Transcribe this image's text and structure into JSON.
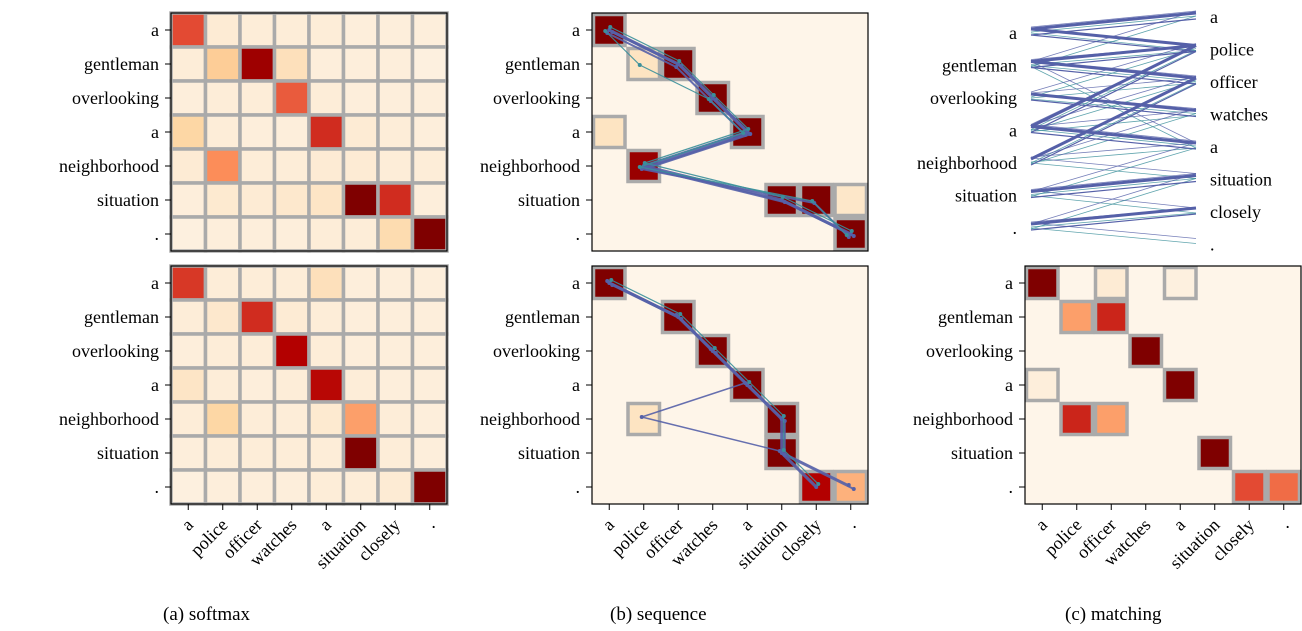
{
  "figure": {
    "caption_a": "(a) softmax",
    "caption_b": "(b) sequence",
    "caption_c": "(c) matching"
  },
  "chart_data": [
    {
      "type": "heatmap",
      "panel": "a-top",
      "title": "",
      "xlabel": "",
      "ylabel": "",
      "rows": [
        "a",
        "gentleman",
        "overlooking",
        "a",
        "neighborhood",
        "situation",
        "."
      ],
      "cols": [
        "a",
        "police",
        "officer",
        "watches",
        "a",
        "situation",
        "closely",
        "."
      ],
      "grid": true,
      "values": [
        [
          0.6,
          0.05,
          0.04,
          0.04,
          0.04,
          0.03,
          0.03,
          0.03
        ],
        [
          0.04,
          0.22,
          0.88,
          0.12,
          0.03,
          0.03,
          0.03,
          0.02
        ],
        [
          0.03,
          0.04,
          0.04,
          0.55,
          0.04,
          0.03,
          0.03,
          0.03
        ],
        [
          0.18,
          0.04,
          0.03,
          0.03,
          0.68,
          0.05,
          0.04,
          0.03
        ],
        [
          0.05,
          0.4,
          0.04,
          0.04,
          0.05,
          0.05,
          0.04,
          0.04
        ],
        [
          0.03,
          0.06,
          0.05,
          0.07,
          0.09,
          1.0,
          0.68,
          0.03
        ],
        [
          0.02,
          0.03,
          0.03,
          0.03,
          0.04,
          0.04,
          0.15,
          1.0
        ]
      ]
    },
    {
      "type": "heatmap",
      "panel": "a-bottom",
      "title": "",
      "xlabel": "",
      "ylabel": "",
      "rows": [
        "a",
        "gentleman",
        "overlooking",
        "a",
        "neighborhood",
        "situation",
        "."
      ],
      "cols": [
        "a",
        "police",
        "officer",
        "watches",
        "a",
        "situation",
        "closely",
        "."
      ],
      "grid": true,
      "values": [
        [
          0.65,
          0.04,
          0.04,
          0.04,
          0.12,
          0.03,
          0.03,
          0.03
        ],
        [
          0.04,
          0.07,
          0.68,
          0.05,
          0.04,
          0.03,
          0.03,
          0.03
        ],
        [
          0.03,
          0.04,
          0.04,
          0.8,
          0.04,
          0.03,
          0.03,
          0.03
        ],
        [
          0.09,
          0.04,
          0.03,
          0.04,
          0.78,
          0.04,
          0.03,
          0.03
        ],
        [
          0.04,
          0.18,
          0.04,
          0.04,
          0.06,
          0.35,
          0.04,
          0.03
        ],
        [
          0.03,
          0.04,
          0.04,
          0.04,
          0.04,
          1.0,
          0.04,
          0.03
        ],
        [
          0.02,
          0.03,
          0.03,
          0.03,
          0.04,
          0.04,
          0.05,
          1.0
        ]
      ]
    },
    {
      "type": "heatmap",
      "panel": "b-top",
      "title": "",
      "xlabel": "",
      "ylabel": "",
      "rows": [
        "a",
        "gentleman",
        "overlooking",
        "a",
        "neighborhood",
        "situation",
        "."
      ],
      "cols": [
        "a",
        "police",
        "officer",
        "watches",
        "a",
        "situation",
        "closely",
        "."
      ],
      "grid": false,
      "values": [
        [
          1.0,
          0,
          0,
          0,
          0,
          0,
          0,
          0
        ],
        [
          0,
          0.1,
          1.0,
          0,
          0,
          0,
          0,
          0
        ],
        [
          0,
          0,
          0,
          1.0,
          0,
          0,
          0,
          0
        ],
        [
          0.1,
          0,
          0,
          0,
          1.0,
          0,
          0,
          0
        ],
        [
          0,
          0.9,
          0,
          0,
          0,
          0,
          0,
          0
        ],
        [
          0,
          0,
          0,
          0,
          0,
          1.0,
          1.0,
          0.08
        ],
        [
          0,
          0,
          0,
          0,
          0,
          0,
          0,
          1.0
        ]
      ]
    },
    {
      "type": "heatmap",
      "panel": "b-bottom",
      "title": "",
      "xlabel": "",
      "ylabel": "",
      "rows": [
        "a",
        "gentleman",
        "overlooking",
        "a",
        "neighborhood",
        "situation",
        "."
      ],
      "cols": [
        "a",
        "police",
        "officer",
        "watches",
        "a",
        "situation",
        "closely",
        "."
      ],
      "grid": false,
      "values": [
        [
          1.0,
          0,
          0,
          0,
          0,
          0,
          0,
          0
        ],
        [
          0,
          0,
          1.0,
          0,
          0,
          0,
          0,
          0
        ],
        [
          0,
          0,
          0,
          1.0,
          0,
          0,
          0,
          0
        ],
        [
          0,
          0,
          0,
          0,
          1.0,
          0,
          0,
          0
        ],
        [
          0,
          0.1,
          0,
          0,
          0,
          1.0,
          0,
          0
        ],
        [
          0,
          0,
          0,
          0,
          0,
          1.0,
          0,
          0
        ],
        [
          0,
          0,
          0,
          0,
          0,
          0,
          0.8,
          0.3
        ]
      ]
    },
    {
      "type": "heatmap",
      "panel": "c-bottom",
      "title": "",
      "xlabel": "",
      "ylabel": "",
      "rows": [
        "a",
        "gentleman",
        "overlooking",
        "a",
        "neighborhood",
        "situation",
        "."
      ],
      "cols": [
        "a",
        "police",
        "officer",
        "watches",
        "a",
        "situation",
        "closely",
        "."
      ],
      "grid": false,
      "values": [
        [
          1.0,
          0,
          0.05,
          0,
          0.02,
          0,
          0,
          0
        ],
        [
          0,
          0.35,
          0.7,
          0,
          0,
          0,
          0,
          0
        ],
        [
          0,
          0,
          0,
          1.0,
          0,
          0,
          0,
          0
        ],
        [
          0.03,
          0,
          0,
          0,
          1.0,
          0,
          0,
          0
        ],
        [
          0,
          0.7,
          0.35,
          0,
          0,
          0,
          0,
          0
        ],
        [
          0,
          0,
          0,
          0,
          0,
          1.0,
          0,
          0
        ],
        [
          0,
          0,
          0,
          0,
          0,
          0,
          0.6,
          0.5
        ]
      ]
    },
    {
      "type": "bipartite",
      "panel": "c-top",
      "title": "",
      "left": [
        "a",
        "gentleman",
        "overlooking",
        "a",
        "neighborhood",
        "situation",
        "."
      ],
      "right": [
        "a",
        "police",
        "officer",
        "watches",
        "a",
        "situation",
        "closely",
        "."
      ],
      "strong_links": [
        [
          0,
          0
        ],
        [
          0,
          1
        ],
        [
          1,
          2
        ],
        [
          1,
          1
        ],
        [
          2,
          3
        ],
        [
          3,
          4
        ],
        [
          3,
          1
        ],
        [
          4,
          2
        ],
        [
          5,
          5
        ],
        [
          6,
          6
        ]
      ]
    }
  ],
  "colors": {
    "cmap": [
      "#fdf3e6",
      "#fdd49e",
      "#fc8d59",
      "#e34a33",
      "#b30000",
      "#7f0000"
    ],
    "grid": "#aaaaaa",
    "box": "#aaaaaa",
    "path": "#5560a8",
    "path_teal": "#3a8f9a",
    "panel_bg": "#fef5e9"
  }
}
